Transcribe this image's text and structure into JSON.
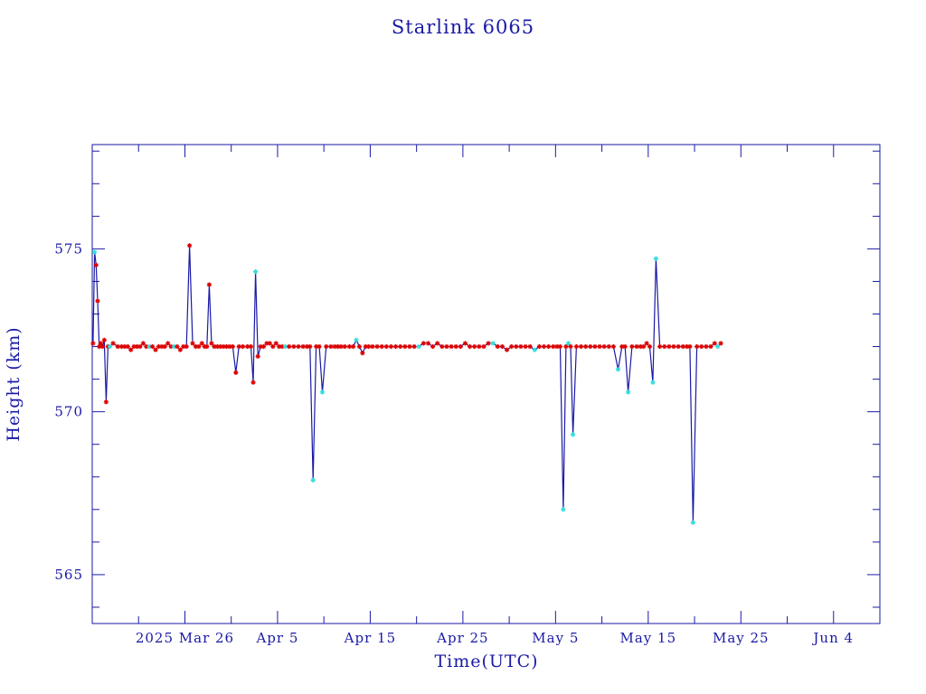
{
  "chart_data": {
    "type": "line",
    "title": "Starlink 6065",
    "xlabel": "Time(UTC)",
    "ylabel": "Height (km)",
    "x_unit": "date",
    "xlim": [
      "2025-03-16",
      "2025-06-09"
    ],
    "ylim": [
      563.5,
      578.2
    ],
    "x_ticks": [
      {
        "date": "2025-03-26",
        "label": "2025 Mar 26"
      },
      {
        "date": "2025-04-05",
        "label": "Apr  5"
      },
      {
        "date": "2025-04-15",
        "label": "Apr 15"
      },
      {
        "date": "2025-04-25",
        "label": "Apr 25"
      },
      {
        "date": "2025-05-05",
        "label": "May  5"
      },
      {
        "date": "2025-05-15",
        "label": "May 15"
      },
      {
        "date": "2025-05-25",
        "label": "May 25"
      },
      {
        "date": "2025-06-04",
        "label": "Jun  4"
      }
    ],
    "y_ticks": [
      {
        "value": 565,
        "label": "565"
      },
      {
        "value": 570,
        "label": "570"
      },
      {
        "value": 575,
        "label": "575"
      }
    ],
    "grid": false,
    "legend": "none",
    "colors": {
      "axis": "#1a1aa6",
      "line": "#1a1aa6",
      "marker_red": "#dd0000",
      "marker_cyan": "#33dddd"
    },
    "series": [
      {
        "line": true,
        "points": [
          [
            "2025-03-16",
            572.1,
            "r"
          ],
          [
            "2025-03-16",
            574.9,
            "c"
          ],
          [
            "2025-03-16",
            574.5,
            "r"
          ],
          [
            "2025-03-16",
            573.4,
            "r"
          ],
          [
            "2025-03-16",
            572.0,
            "r"
          ],
          [
            "2025-03-16",
            572.1,
            "r"
          ],
          [
            "2025-03-17",
            572.0,
            "r"
          ],
          [
            "2025-03-17",
            572.2,
            "r"
          ],
          [
            "2025-03-17",
            570.3,
            "r"
          ],
          [
            "2025-03-17",
            572.0,
            "r"
          ],
          [
            "2025-03-17",
            572.0,
            "c"
          ],
          [
            "2025-03-18",
            572.1,
            "r"
          ],
          [
            "2025-03-18",
            572.0,
            "r"
          ],
          [
            "2025-03-19",
            572.0,
            "r"
          ],
          [
            "2025-03-19",
            572.0,
            "r"
          ],
          [
            "2025-03-19",
            572.0,
            "r"
          ],
          [
            "2025-03-20",
            571.9,
            "r"
          ],
          [
            "2025-03-20",
            572.0,
            "r"
          ],
          [
            "2025-03-20",
            572.0,
            "r"
          ],
          [
            "2025-03-21",
            572.0,
            "r"
          ],
          [
            "2025-03-21",
            572.1,
            "r"
          ],
          [
            "2025-03-21",
            572.0,
            "r"
          ],
          [
            "2025-03-22",
            572.0,
            "c"
          ],
          [
            "2025-03-22",
            572.0,
            "r"
          ],
          [
            "2025-03-22",
            571.9,
            "r"
          ],
          [
            "2025-03-23",
            572.0,
            "r"
          ],
          [
            "2025-03-23",
            572.0,
            "r"
          ],
          [
            "2025-03-23",
            572.0,
            "r"
          ],
          [
            "2025-03-24",
            572.1,
            "r"
          ],
          [
            "2025-03-24",
            572.0,
            "r"
          ],
          [
            "2025-03-24",
            572.0,
            "c"
          ],
          [
            "2025-03-25",
            572.0,
            "r"
          ],
          [
            "2025-03-25",
            571.9,
            "r"
          ],
          [
            "2025-03-25",
            572.0,
            "r"
          ],
          [
            "2025-03-26",
            572.0,
            "r"
          ],
          [
            "2025-03-26",
            575.1,
            "r"
          ],
          [
            "2025-03-26",
            572.1,
            "r"
          ],
          [
            "2025-03-27",
            572.0,
            "r"
          ],
          [
            "2025-03-27",
            572.0,
            "r"
          ],
          [
            "2025-03-27",
            572.1,
            "r"
          ],
          [
            "2025-03-28",
            572.0,
            "r"
          ],
          [
            "2025-03-28",
            572.0,
            "r"
          ],
          [
            "2025-03-28",
            573.9,
            "r"
          ],
          [
            "2025-03-28",
            572.1,
            "r"
          ],
          [
            "2025-03-29",
            572.0,
            "r"
          ],
          [
            "2025-03-29",
            572.0,
            "r"
          ],
          [
            "2025-03-29",
            572.0,
            "r"
          ],
          [
            "2025-03-30",
            572.0,
            "r"
          ],
          [
            "2025-03-30",
            572.0,
            "r"
          ],
          [
            "2025-03-30",
            572.0,
            "r"
          ],
          [
            "2025-03-31",
            572.0,
            "r"
          ],
          [
            "2025-03-31",
            571.2,
            "r"
          ],
          [
            "2025-03-31",
            572.0,
            "r"
          ],
          [
            "2025-04-01",
            572.0,
            "r"
          ],
          [
            "2025-04-01",
            572.0,
            "r"
          ],
          [
            "2025-04-02",
            572.0,
            "r"
          ],
          [
            "2025-04-02",
            570.9,
            "r"
          ],
          [
            "2025-04-02",
            574.3,
            "c"
          ],
          [
            "2025-04-02",
            571.7,
            "r"
          ],
          [
            "2025-04-03",
            572.0,
            "r"
          ],
          [
            "2025-04-03",
            572.0,
            "r"
          ],
          [
            "2025-04-03",
            572.1,
            "r"
          ],
          [
            "2025-04-04",
            572.1,
            "r"
          ],
          [
            "2025-04-04",
            572.0,
            "r"
          ],
          [
            "2025-04-04",
            572.1,
            "r"
          ],
          [
            "2025-04-05",
            572.0,
            "r"
          ],
          [
            "2025-04-05",
            572.0,
            "r"
          ],
          [
            "2025-04-05",
            572.0,
            "c"
          ],
          [
            "2025-04-06",
            572.0,
            "r"
          ],
          [
            "2025-04-06",
            572.0,
            "r"
          ],
          [
            "2025-04-07",
            572.0,
            "r"
          ],
          [
            "2025-04-07",
            572.0,
            "r"
          ],
          [
            "2025-04-08",
            572.0,
            "r"
          ],
          [
            "2025-04-08",
            572.0,
            "r"
          ],
          [
            "2025-04-08",
            567.9,
            "c"
          ],
          [
            "2025-04-09",
            572.0,
            "r"
          ],
          [
            "2025-04-09",
            572.0,
            "r"
          ],
          [
            "2025-04-09",
            570.6,
            "c"
          ],
          [
            "2025-04-10",
            572.0,
            "r"
          ],
          [
            "2025-04-10",
            572.0,
            "r"
          ],
          [
            "2025-04-11",
            572.0,
            "r"
          ],
          [
            "2025-04-11",
            572.0,
            "r"
          ],
          [
            "2025-04-11",
            572.0,
            "r"
          ],
          [
            "2025-04-12",
            572.0,
            "r"
          ],
          [
            "2025-04-12",
            572.0,
            "r"
          ],
          [
            "2025-04-13",
            572.0,
            "r"
          ],
          [
            "2025-04-13",
            572.2,
            "c"
          ],
          [
            "2025-04-13",
            572.0,
            "r"
          ],
          [
            "2025-04-14",
            571.8,
            "r"
          ],
          [
            "2025-04-14",
            572.0,
            "r"
          ],
          [
            "2025-04-14",
            572.0,
            "r"
          ],
          [
            "2025-04-15",
            572.0,
            "r"
          ],
          [
            "2025-04-15",
            572.0,
            "r"
          ],
          [
            "2025-04-16",
            572.0,
            "r"
          ],
          [
            "2025-04-16",
            572.0,
            "r"
          ],
          [
            "2025-04-17",
            572.0,
            "r"
          ],
          [
            "2025-04-17",
            572.0,
            "r"
          ],
          [
            "2025-04-18",
            572.0,
            "r"
          ],
          [
            "2025-04-18",
            572.0,
            "r"
          ],
          [
            "2025-04-19",
            572.0,
            "r"
          ],
          [
            "2025-04-19",
            572.0,
            "r"
          ],
          [
            "2025-04-20",
            572.0,
            "c"
          ],
          [
            "2025-04-20",
            572.1,
            "r"
          ],
          [
            "2025-04-21",
            572.1,
            "r"
          ],
          [
            "2025-04-21",
            572.0,
            "r"
          ],
          [
            "2025-04-22",
            572.1,
            "r"
          ],
          [
            "2025-04-22",
            572.0,
            "r"
          ],
          [
            "2025-04-23",
            572.0,
            "r"
          ],
          [
            "2025-04-23",
            572.0,
            "r"
          ],
          [
            "2025-04-24",
            572.0,
            "r"
          ],
          [
            "2025-04-24",
            572.0,
            "r"
          ],
          [
            "2025-04-25",
            572.1,
            "r"
          ],
          [
            "2025-04-25",
            572.0,
            "r"
          ],
          [
            "2025-04-26",
            572.0,
            "r"
          ],
          [
            "2025-04-26",
            572.0,
            "r"
          ],
          [
            "2025-04-27",
            572.0,
            "r"
          ],
          [
            "2025-04-27",
            572.1,
            "r"
          ],
          [
            "2025-04-28",
            572.1,
            "c"
          ],
          [
            "2025-04-28",
            572.0,
            "r"
          ],
          [
            "2025-04-29",
            572.0,
            "r"
          ],
          [
            "2025-04-29",
            571.9,
            "r"
          ],
          [
            "2025-04-30",
            572.0,
            "r"
          ],
          [
            "2025-04-30",
            572.0,
            "r"
          ],
          [
            "2025-05-01",
            572.0,
            "r"
          ],
          [
            "2025-05-01",
            572.0,
            "r"
          ],
          [
            "2025-05-02",
            572.0,
            "r"
          ],
          [
            "2025-05-02",
            571.9,
            "c"
          ],
          [
            "2025-05-03",
            572.0,
            "r"
          ],
          [
            "2025-05-03",
            572.0,
            "r"
          ],
          [
            "2025-05-04",
            572.0,
            "r"
          ],
          [
            "2025-05-04",
            572.0,
            "r"
          ],
          [
            "2025-05-05",
            572.0,
            "r"
          ],
          [
            "2025-05-05",
            572.0,
            "r"
          ],
          [
            "2025-05-05",
            567.0,
            "c"
          ],
          [
            "2025-05-06",
            572.0,
            "r"
          ],
          [
            "2025-05-06",
            572.1,
            "c"
          ],
          [
            "2025-05-06",
            572.0,
            "r"
          ],
          [
            "2025-05-06",
            569.3,
            "c"
          ],
          [
            "2025-05-07",
            572.0,
            "r"
          ],
          [
            "2025-05-07",
            572.0,
            "r"
          ],
          [
            "2025-05-08",
            572.0,
            "r"
          ],
          [
            "2025-05-08",
            572.0,
            "r"
          ],
          [
            "2025-05-09",
            572.0,
            "r"
          ],
          [
            "2025-05-09",
            572.0,
            "r"
          ],
          [
            "2025-05-10",
            572.0,
            "r"
          ],
          [
            "2025-05-10",
            572.0,
            "r"
          ],
          [
            "2025-05-11",
            572.0,
            "r"
          ],
          [
            "2025-05-11",
            571.3,
            "c"
          ],
          [
            "2025-05-12",
            572.0,
            "r"
          ],
          [
            "2025-05-12",
            572.0,
            "r"
          ],
          [
            "2025-05-12",
            570.6,
            "c"
          ],
          [
            "2025-05-13",
            572.0,
            "r"
          ],
          [
            "2025-05-13",
            572.0,
            "r"
          ],
          [
            "2025-05-14",
            572.0,
            "r"
          ],
          [
            "2025-05-14",
            572.0,
            "r"
          ],
          [
            "2025-05-14",
            572.1,
            "r"
          ],
          [
            "2025-05-15",
            572.0,
            "r"
          ],
          [
            "2025-05-15",
            570.9,
            "c"
          ],
          [
            "2025-05-15",
            574.7,
            "c"
          ],
          [
            "2025-05-16",
            572.0,
            "r"
          ],
          [
            "2025-05-16",
            572.0,
            "r"
          ],
          [
            "2025-05-17",
            572.0,
            "r"
          ],
          [
            "2025-05-17",
            572.0,
            "r"
          ],
          [
            "2025-05-18",
            572.0,
            "r"
          ],
          [
            "2025-05-18",
            572.0,
            "r"
          ],
          [
            "2025-05-19",
            572.0,
            "r"
          ],
          [
            "2025-05-19",
            572.0,
            "r"
          ],
          [
            "2025-05-19",
            566.6,
            "c"
          ],
          [
            "2025-05-20",
            572.0,
            "r"
          ],
          [
            "2025-05-20",
            572.0,
            "r"
          ],
          [
            "2025-05-21",
            572.0,
            "r"
          ],
          [
            "2025-05-21",
            572.0,
            "r"
          ],
          [
            "2025-05-22",
            572.1,
            "r"
          ],
          [
            "2025-05-22",
            572.0,
            "c"
          ],
          [
            "2025-05-22",
            572.1,
            "r"
          ]
        ]
      }
    ]
  }
}
